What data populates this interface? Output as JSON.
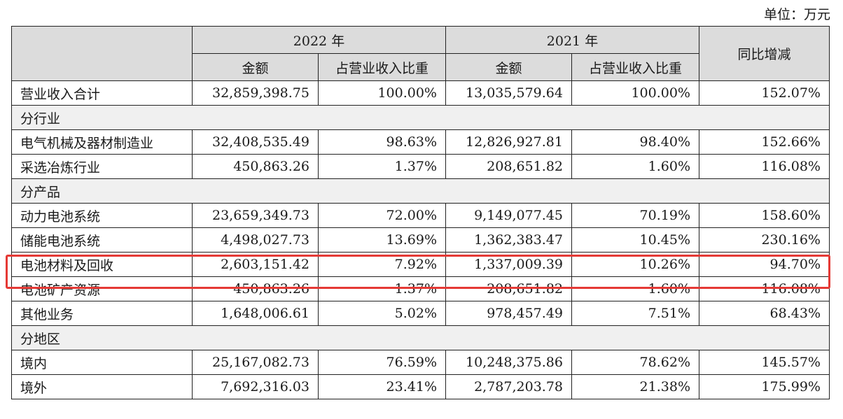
{
  "unit_label": "单位：万元",
  "header": {
    "year_2022": "2022 年",
    "year_2021": "2021 年",
    "yoy": "同比增减",
    "amount": "金额",
    "ratio": "占营业收入比重"
  },
  "total_row": {
    "label": "营业收入合计",
    "a2022": "32,859,398.75",
    "r2022": "100.00%",
    "a2021": "13,035,579.64",
    "r2021": "100.00%",
    "yoy": "152.07%"
  },
  "sections": {
    "industry": "分行业",
    "product": "分产品",
    "region": "分地区"
  },
  "industry_rows": [
    {
      "label": "电气机械及器材制造业",
      "a2022": "32,408,535.49",
      "r2022": "98.63%",
      "a2021": "12,826,927.81",
      "r2021": "98.40%",
      "yoy": "152.66%"
    },
    {
      "label": "采选冶炼行业",
      "a2022": "450,863.26",
      "r2022": "1.37%",
      "a2021": "208,651.82",
      "r2021": "1.60%",
      "yoy": "116.08%"
    }
  ],
  "product_rows": [
    {
      "label": "动力电池系统",
      "a2022": "23,659,349.73",
      "r2022": "72.00%",
      "a2021": "9,149,077.45",
      "r2021": "70.19%",
      "yoy": "158.60%"
    },
    {
      "label": "储能电池系统",
      "a2022": "4,498,027.73",
      "r2022": "13.69%",
      "a2021": "1,362,383.47",
      "r2021": "10.45%",
      "yoy": "230.16%"
    },
    {
      "label": "电池材料及回收",
      "a2022": "2,603,151.42",
      "r2022": "7.92%",
      "a2021": "1,337,009.39",
      "r2021": "10.26%",
      "yoy": "94.70%"
    },
    {
      "label": "电池矿产资源",
      "a2022": "450,863.26",
      "r2022": "1.37%",
      "a2021": "208,651.82",
      "r2021": "1.60%",
      "yoy": "116.08%"
    },
    {
      "label": "其他业务",
      "a2022": "1,648,006.61",
      "r2022": "5.02%",
      "a2021": "978,457.49",
      "r2021": "7.51%",
      "yoy": "68.43%"
    }
  ],
  "region_rows": [
    {
      "label": "境内",
      "a2022": "25,167,082.73",
      "r2022": "76.59%",
      "a2021": "10,248,375.86",
      "r2021": "78.62%",
      "yoy": "145.57%"
    },
    {
      "label": "境外",
      "a2022": "7,692,316.03",
      "r2022": "23.41%",
      "a2021": "2,787,203.78",
      "r2021": "21.38%",
      "yoy": "175.99%"
    }
  ],
  "highlight_color": "#e53935"
}
